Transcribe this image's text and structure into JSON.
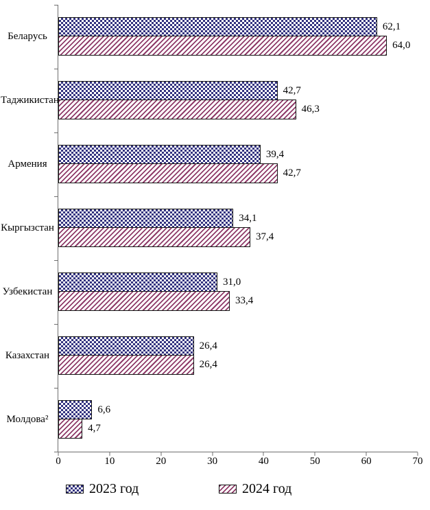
{
  "chart_data": {
    "type": "bar",
    "orientation": "horizontal",
    "title": "",
    "categories": [
      "Беларусь",
      "Таджикистан",
      "Армения",
      "Кыргызстан",
      "Узбекистан",
      "Казахстан",
      "Молдова²"
    ],
    "series": [
      {
        "name": "2023 год",
        "pattern": "checkerboard",
        "color": "#32327f",
        "values": [
          62.1,
          42.7,
          39.4,
          34.1,
          31.0,
          26.4,
          6.6
        ],
        "value_labels": [
          "62,1",
          "42,7",
          "39,4",
          "34,1",
          "31,0",
          "26,4",
          "6,6"
        ]
      },
      {
        "name": "2024 год",
        "pattern": "diagonal-hatch",
        "color": "#8e3a68",
        "values": [
          64.0,
          46.3,
          42.7,
          37.4,
          33.4,
          26.4,
          4.7
        ],
        "value_labels": [
          "64,0",
          "46,3",
          "42,7",
          "37,4",
          "33,4",
          "26,4",
          "4,7"
        ]
      }
    ],
    "xlim": [
      0,
      70
    ],
    "x_ticks": [
      "0",
      "10",
      "20",
      "30",
      "40",
      "50",
      "60",
      "70"
    ],
    "grid": false,
    "legend_position": "bottom",
    "axis_color": "#6e6e6e",
    "bar_border_color": "#111111",
    "background_color": "#ffffff"
  }
}
